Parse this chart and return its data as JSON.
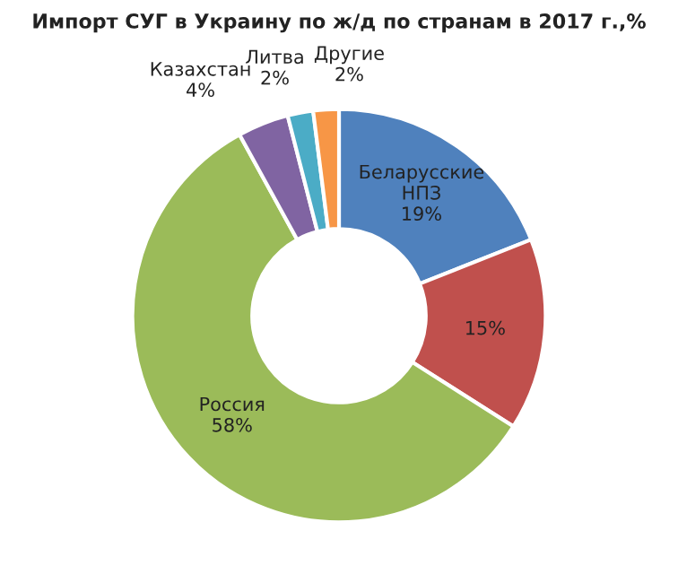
{
  "chart_data": {
    "type": "donut",
    "title": "Импорт СУГ в Украину по ж/д по странам в 2017 г.,%",
    "categories": [
      "Беларусские НПЗ",
      null,
      "Россия",
      "Казахстан",
      "Литва",
      "Другие"
    ],
    "values": [
      19,
      15,
      58,
      4,
      2,
      2
    ],
    "value_labels": [
      "19%",
      "15%",
      "58%",
      "4%",
      "2%",
      "2%"
    ],
    "colors": [
      "#4f81bd",
      "#c0504d",
      "#9bbb59",
      "#8064a2",
      "#4bacc6",
      "#f79646"
    ],
    "legend": false
  }
}
